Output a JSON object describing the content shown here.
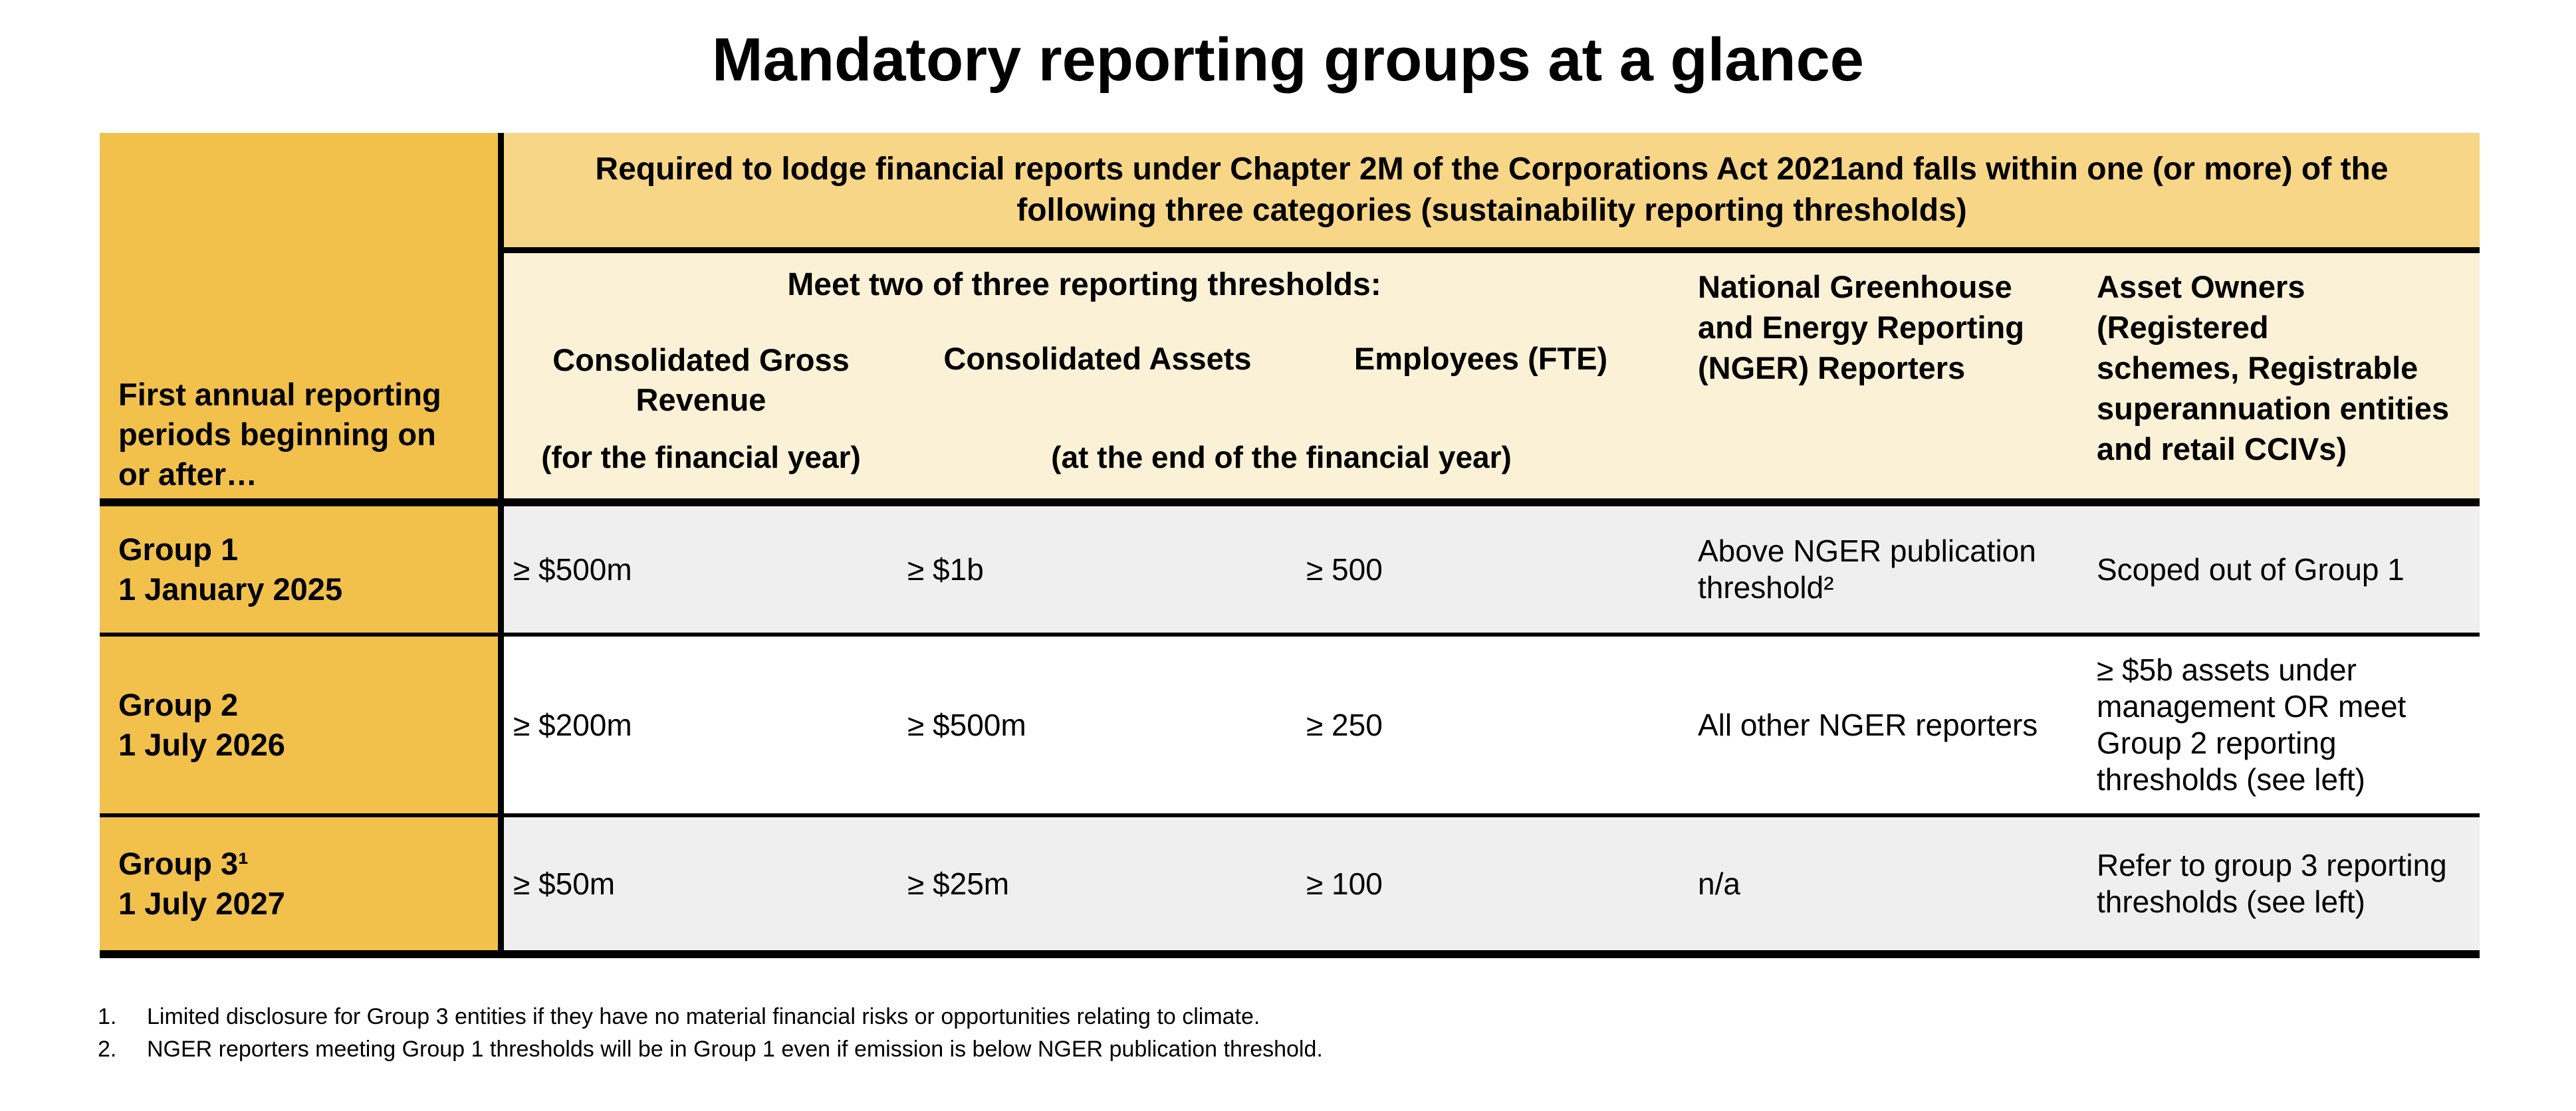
{
  "title": "Mandatory reporting groups at a glance",
  "table": {
    "row_header": "First annual reporting\nperiods beginning on\nor after…",
    "top_header": "Required to lodge financial reports under Chapter 2M of the Corporations Act 2021and falls within one (or more) of the\nfollowing three categories (sustainability reporting thresholds)",
    "meet_header": "Meet two of three reporting thresholds:",
    "columns": {
      "revenue_label": "Consolidated Gross\nRevenue",
      "revenue_note": "(for the financial year)",
      "assets_label": "Consolidated Assets",
      "employees_label": "Employees (FTE)",
      "assets_employees_note": "(at the end of the financial year)",
      "nger_label": "National Greenhouse\nand Energy Reporting\n(NGER) Reporters",
      "asset_owners_label": "Asset Owners\n(Registered\nschemes, Registrable\nsuperannuation entities\nand retail CCIVs)"
    },
    "rows": [
      {
        "group": "Group 1",
        "date": "1 January 2025",
        "revenue": "≥ $500m",
        "assets": "≥ $1b",
        "employees": "≥ 500",
        "nger": "Above NGER publication\nthreshold²",
        "asset_owners": "Scoped out of Group 1"
      },
      {
        "group": "Group 2",
        "date": "1 July 2026",
        "revenue": "≥ $200m",
        "assets": "≥ $500m",
        "employees": "≥ 250",
        "nger": "All other NGER reporters",
        "asset_owners": "≥ $5b assets under\nmanagement OR meet\nGroup 2 reporting\nthresholds (see left)"
      },
      {
        "group": "Group 3¹",
        "date": "1 July 2027",
        "revenue": "≥ $50m",
        "assets": "≥ $25m",
        "employees": "≥ 100",
        "nger": "n/a",
        "asset_owners": "Refer to group 3 reporting\nthresholds (see left)"
      }
    ]
  },
  "footnotes": [
    {
      "num": "1.",
      "text": "Limited disclosure for Group 3 entities if they have no material financial risks or opportunities relating to climate."
    },
    {
      "num": "2.",
      "text": "NGER reporters meeting Group 1 thresholds will be in Group 1 even if emission is below NGER publication threshold."
    }
  ],
  "colors": {
    "row_header_orange": "#F2C14C",
    "top_header_yellow": "#F7D687",
    "sub_header_cream": "#FBF1D6",
    "row_gray": "#EFEFEF",
    "row_white": "#FFFFFF",
    "border_black": "#000000"
  }
}
